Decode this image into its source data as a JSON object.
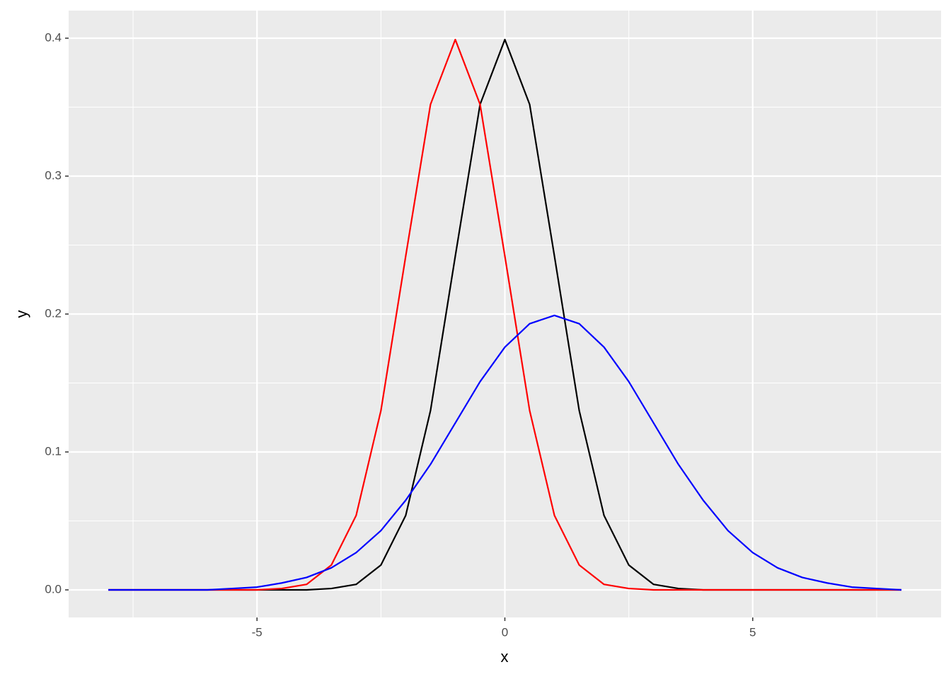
{
  "chart_data": {
    "type": "line",
    "x_label": "x",
    "y_label": "y",
    "x": [
      -8,
      -7.5,
      -7,
      -6.5,
      -6,
      -5.5,
      -5,
      -4.5,
      -4,
      -3.5,
      -3,
      -2.5,
      -2,
      -1.5,
      -1,
      -0.5,
      0,
      0.5,
      1,
      1.5,
      2,
      2.5,
      3,
      3.5,
      4,
      4.5,
      5,
      5.5,
      6,
      6.5,
      7,
      7.5,
      8
    ],
    "series": [
      {
        "color": "#000000",
        "values": [
          0,
          0,
          0,
          0,
          0,
          0,
          0,
          0,
          0,
          0.001,
          0.004,
          0.018,
          0.054,
          0.13,
          0.242,
          0.352,
          0.399,
          0.352,
          0.242,
          0.13,
          0.054,
          0.018,
          0.004,
          0.001,
          0,
          0,
          0,
          0,
          0,
          0,
          0,
          0,
          0
        ]
      },
      {
        "color": "#ff0000",
        "values": [
          0,
          0,
          0,
          0,
          0,
          0,
          0,
          0.001,
          0.004,
          0.018,
          0.054,
          0.13,
          0.242,
          0.352,
          0.399,
          0.352,
          0.242,
          0.13,
          0.054,
          0.018,
          0.004,
          0.001,
          0,
          0,
          0,
          0,
          0,
          0,
          0,
          0,
          0,
          0,
          0
        ]
      },
      {
        "color": "#0000ff",
        "values": [
          0,
          0,
          0,
          0,
          0,
          0.001,
          0.002,
          0.005,
          0.009,
          0.016,
          0.027,
          0.043,
          0.065,
          0.091,
          0.121,
          0.151,
          0.176,
          0.193,
          0.199,
          0.193,
          0.176,
          0.151,
          0.121,
          0.091,
          0.065,
          0.043,
          0.027,
          0.016,
          0.009,
          0.005,
          0.002,
          0.001,
          0
        ]
      }
    ],
    "xlim": [
      -8.8,
      8.8
    ],
    "ylim": [
      -0.02,
      0.42
    ],
    "xticks": [
      -5,
      0,
      5
    ],
    "yticks": [
      {
        "value": 0,
        "label": "0.0"
      },
      0.1,
      0.2,
      0.3,
      0.4
    ],
    "grid": true
  }
}
